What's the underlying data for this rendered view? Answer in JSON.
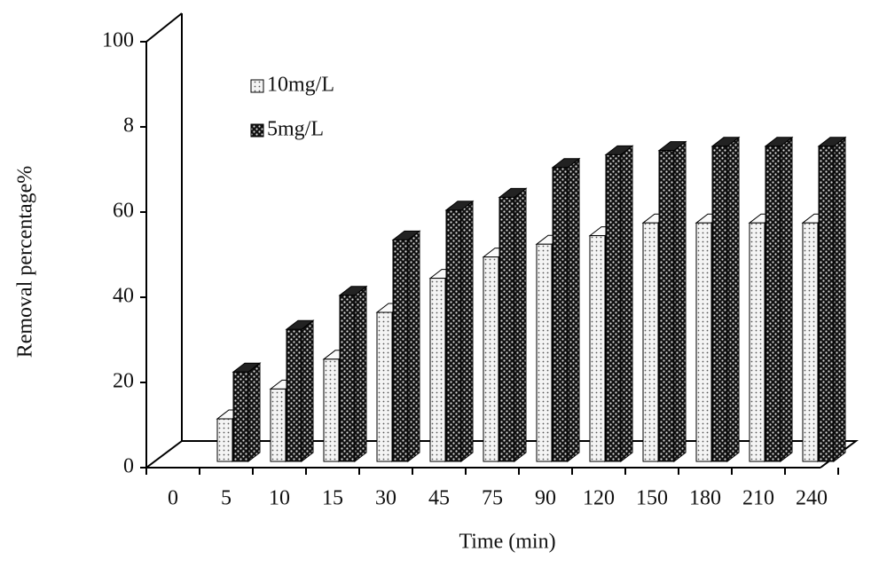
{
  "chart_data": {
    "type": "bar3d",
    "xlabel": "Time (min)",
    "ylabel": "Removal percentage%",
    "categories": [
      "0",
      "5",
      "10",
      "15",
      "30",
      "45",
      "75",
      "90",
      "120",
      "150",
      "180",
      "210",
      "240"
    ],
    "series": [
      {
        "name": "10mg/L",
        "color": "#f2f2f2",
        "values": [
          null,
          10,
          17,
          24,
          35,
          43,
          48,
          51,
          53,
          56,
          56,
          56,
          56
        ]
      },
      {
        "name": "5mg/L",
        "color": "#111111",
        "values": [
          null,
          21,
          31,
          39,
          52,
          59,
          62,
          69,
          72,
          73,
          74,
          74,
          74
        ]
      }
    ],
    "ylim": [
      0,
      100
    ],
    "yticks": [
      0,
      20,
      40,
      60,
      {
        "value": 80,
        "label": "8"
      },
      100
    ],
    "grid": false
  }
}
